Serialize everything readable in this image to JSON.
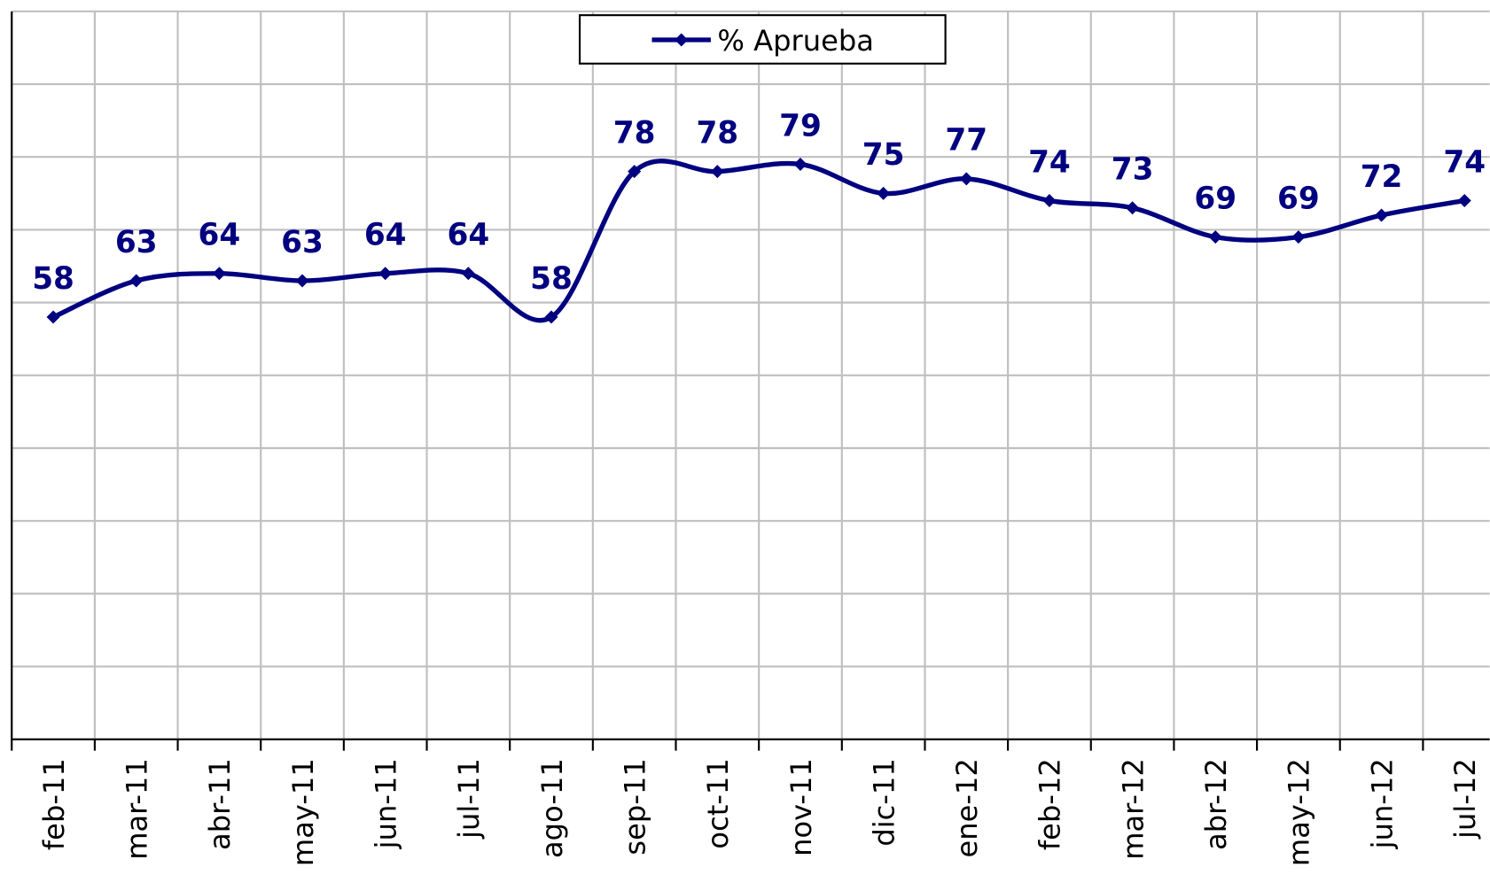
{
  "chart_data": {
    "type": "line",
    "categories": [
      "feb-11",
      "mar-11",
      "abr-11",
      "may-11",
      "jun-11",
      "jul-11",
      "ago-11",
      "sep-11",
      "oct-11",
      "nov-11",
      "dic-11",
      "ene-12",
      "feb-12",
      "mar-12",
      "abr-12",
      "may-12",
      "jun-12",
      "jul-12"
    ],
    "series": [
      {
        "name": "% Aprueba",
        "color": "#000080",
        "values": [
          58,
          63,
          64,
          63,
          64,
          64,
          58,
          78,
          78,
          79,
          75,
          77,
          74,
          73,
          69,
          69,
          72,
          74
        ]
      }
    ],
    "ylim": [
      0,
      100
    ],
    "yticks": [
      0,
      10,
      20,
      30,
      40,
      50,
      60,
      70,
      80,
      90,
      100
    ],
    "grid": true,
    "legend": "top"
  }
}
